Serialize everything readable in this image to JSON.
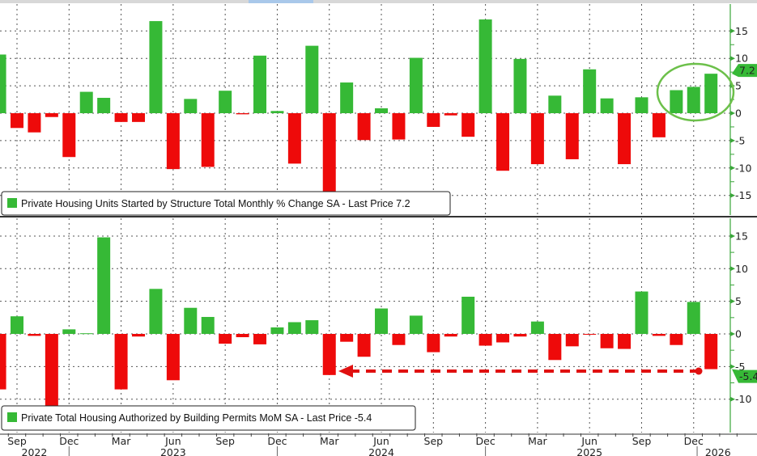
{
  "chart_data": [
    {
      "type": "bar",
      "title": "Private Housing Units Started by Structure Total Monthly % Change SA - Last Price 7.2",
      "legend": "Private Housing Units Started by Structure Total Monthly % Change SA - Last Price 7.2",
      "legend_placement": "bottom-left",
      "last_price_label": "7.2",
      "ylim": [
        -18,
        20
      ],
      "yticks": [
        "15",
        "10",
        "5",
        "0",
        "-5",
        "-10",
        "-15"
      ],
      "ytick_values": [
        15,
        10,
        5,
        0,
        -5,
        -10,
        -15
      ],
      "annotation": "green circle around the last three bars (Nov 2025 – Jan 2026)",
      "positive_color": "#36b936",
      "negative_color": "#ee0a0a",
      "values": [
        10.7,
        -2.7,
        -3.5,
        -0.7,
        -8.0,
        3.9,
        2.8,
        -1.6,
        -1.6,
        16.8,
        -10.2,
        2.6,
        -9.8,
        4.1,
        -0.2,
        10.5,
        0.4,
        -9.2,
        12.3,
        -14.8,
        5.6,
        -4.9,
        0.9,
        -4.8,
        10.1,
        -2.5,
        -0.4,
        -4.3,
        17.1,
        -10.5,
        9.9,
        -9.3,
        3.2,
        -8.4,
        8.0,
        2.7,
        -9.3,
        2.9,
        -4.4,
        4.2,
        4.8,
        7.2
      ]
    },
    {
      "type": "bar",
      "title": "Private Total Housing Authorized by Building Permits MoM SA - Last Price -5.4",
      "legend": "Private Total Housing Authorized by Building Permits MoM SA - Last Price -5.4",
      "legend_placement": "bottom-left",
      "last_price_label": "-5.4",
      "ylim": [
        -15,
        17
      ],
      "yticks": [
        "15",
        "10",
        "5",
        "0",
        "-5",
        "-10"
      ],
      "ytick_values": [
        15,
        10,
        5,
        0,
        -5,
        -10
      ],
      "annotation": "red dashed arrow from the latest value (-5.4) back to the Mar 2024 level",
      "positive_color": "#36b936",
      "negative_color": "#ee0a0a",
      "values": [
        -8.5,
        2.7,
        -0.3,
        -11.5,
        0.7,
        0.1,
        14.8,
        -8.5,
        -0.4,
        6.9,
        -7.1,
        4.0,
        2.6,
        -1.5,
        -0.5,
        -1.6,
        1.0,
        1.8,
        2.1,
        -6.3,
        -1.2,
        -3.5,
        3.9,
        -1.7,
        2.8,
        -2.8,
        -0.4,
        5.7,
        -1.8,
        -1.3,
        -0.4,
        1.9,
        -4.0,
        -1.9,
        -0.1,
        -2.2,
        -2.3,
        6.5,
        -0.3,
        -1.7,
        4.9,
        -5.4
      ]
    }
  ],
  "x_axis": {
    "first_month": "Aug 2022",
    "last_month": "Jan 2026",
    "month_labels": [
      {
        "label": "Sep",
        "index": 1
      },
      {
        "label": "Dec",
        "index": 4
      },
      {
        "label": "Mar",
        "index": 7
      },
      {
        "label": "Jun",
        "index": 10
      },
      {
        "label": "Sep",
        "index": 13
      },
      {
        "label": "Dec",
        "index": 16
      },
      {
        "label": "Mar",
        "index": 19
      },
      {
        "label": "Jun",
        "index": 22
      },
      {
        "label": "Sep",
        "index": 25
      },
      {
        "label": "Dec",
        "index": 28
      },
      {
        "label": "Mar",
        "index": 31
      },
      {
        "label": "Jun",
        "index": 34
      },
      {
        "label": "Sep",
        "index": 37
      },
      {
        "label": "Dec",
        "index": 40
      }
    ],
    "year_labels": [
      {
        "label": "2022",
        "index": 2
      },
      {
        "label": "2023",
        "index": 10
      },
      {
        "label": "2024",
        "index": 22
      },
      {
        "label": "2025",
        "index": 34
      },
      {
        "label": "2026",
        "index": 41.4
      }
    ]
  }
}
